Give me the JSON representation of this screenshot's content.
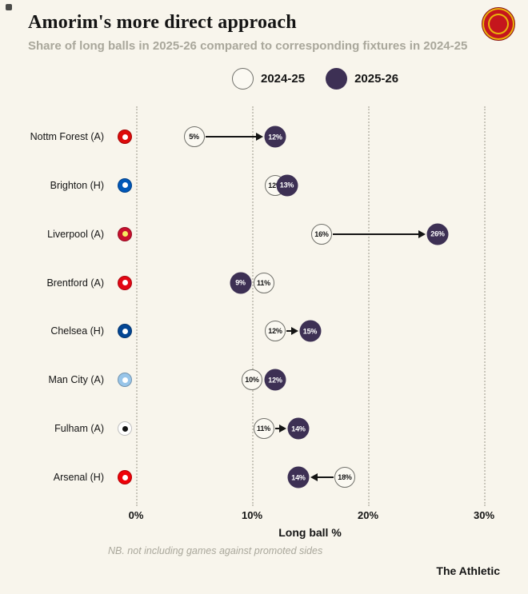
{
  "header": {
    "title": "Amorim's more direct approach",
    "subtitle": "Share of long balls in 2025-26 compared to corresponding fixtures in 2024-25"
  },
  "legend": {
    "season_prev": "2024-25",
    "season_curr": "2025-26"
  },
  "colors": {
    "background": "#f8f5ec",
    "prev-fill": "#fbf9f2",
    "prev-border": "#70706a",
    "curr-fill": "#3d3054",
    "grid": "#c9c6bb",
    "ink": "#141414",
    "muted": "#a9a79b"
  },
  "icons": {
    "crest": "manchester-united-crest"
  },
  "chart_data": {
    "type": "dumbbell",
    "title": "Amorim's more direct approach",
    "subtitle": "Share of long balls in 2025-26 compared to corresponding fixtures in 2024-25",
    "xlabel": "Long ball %",
    "x_ticks": [
      "0%",
      "10%",
      "20%",
      "30%"
    ],
    "x_tick_values": [
      0,
      10,
      20,
      30
    ],
    "xlim": [
      0,
      32
    ],
    "grid": "dotted-vertical",
    "legend_position": "top-center",
    "series_names": [
      "2024-25",
      "2025-26"
    ],
    "rows": [
      {
        "team": "Nottm Forest (A)",
        "prev": 5,
        "curr": 12,
        "arrow": true,
        "badge": {
          "bg": "#dd0a0a",
          "fg": "#ffffff"
        }
      },
      {
        "team": "Brighton (H)",
        "prev": 12,
        "curr": 13,
        "arrow": false,
        "badge": {
          "bg": "#0057b8",
          "fg": "#ffffff"
        }
      },
      {
        "team": "Liverpool (A)",
        "prev": 16,
        "curr": 26,
        "arrow": true,
        "badge": {
          "bg": "#c8102e",
          "fg": "#f6eb61"
        }
      },
      {
        "team": "Brentford (A)",
        "prev": 11,
        "curr": 9,
        "arrow": false,
        "badge": {
          "bg": "#e30613",
          "fg": "#ffffff"
        }
      },
      {
        "team": "Chelsea (H)",
        "prev": 12,
        "curr": 15,
        "arrow": true,
        "badge": {
          "bg": "#034694",
          "fg": "#ffffff"
        }
      },
      {
        "team": "Man City (A)",
        "prev": 10,
        "curr": 12,
        "arrow": false,
        "badge": {
          "bg": "#98c5e9",
          "fg": "#ffffff"
        }
      },
      {
        "team": "Fulham (A)",
        "prev": 11,
        "curr": 14,
        "arrow": true,
        "badge": {
          "bg": "#ffffff",
          "fg": "#141414"
        }
      },
      {
        "team": "Arsenal (H)",
        "prev": 18,
        "curr": 14,
        "arrow": true,
        "badge": {
          "bg": "#ef0107",
          "fg": "#ffffff"
        }
      }
    ]
  },
  "footnote": "NB. not including games against promoted sides",
  "brand": "The Athletic"
}
